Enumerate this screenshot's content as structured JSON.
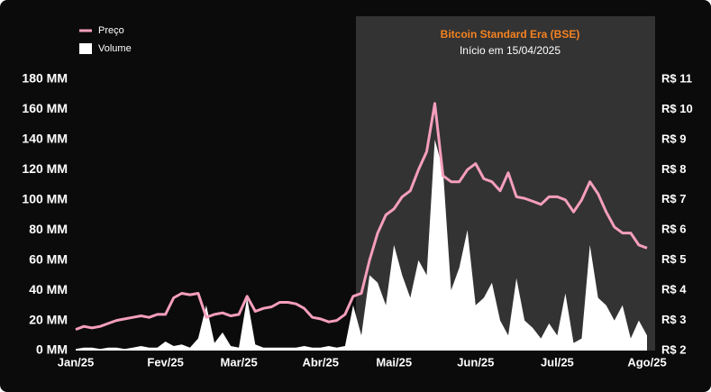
{
  "chart_data": {
    "type": "line",
    "title": "Bitcoin Standard Era (BSE)",
    "subtitle": "Início em 15/04/2025",
    "categories": [
      "Jan/25",
      null,
      null,
      null,
      null,
      null,
      null,
      null,
      null,
      null,
      null,
      "Fev/25",
      null,
      null,
      null,
      null,
      null,
      null,
      null,
      null,
      "Mar/25",
      null,
      null,
      null,
      null,
      null,
      null,
      null,
      null,
      null,
      "Abr/25",
      null,
      null,
      null,
      null,
      null,
      null,
      null,
      null,
      "Mai/25",
      null,
      null,
      null,
      null,
      null,
      null,
      null,
      null,
      null,
      "Jun/25",
      null,
      null,
      null,
      null,
      null,
      null,
      null,
      null,
      null,
      "Jul/25",
      null,
      null,
      null,
      null,
      null,
      null,
      null,
      null,
      null,
      null,
      "Ago/25"
    ],
    "series": [
      {
        "name": "Preço",
        "color": "#f59ebd",
        "axis": "y2",
        "values": [
          2.7,
          2.8,
          2.75,
          2.8,
          2.9,
          3.0,
          3.05,
          3.1,
          3.15,
          3.1,
          3.2,
          3.2,
          3.75,
          3.9,
          3.85,
          3.9,
          3.1,
          3.2,
          3.25,
          3.15,
          3.2,
          3.8,
          3.3,
          3.4,
          3.45,
          3.6,
          3.6,
          3.55,
          3.4,
          3.1,
          3.05,
          2.95,
          3.0,
          3.2,
          3.8,
          3.9,
          5.0,
          5.9,
          6.5,
          6.7,
          7.1,
          7.3,
          8.0,
          8.6,
          10.2,
          7.8,
          7.6,
          7.6,
          8.0,
          8.2,
          7.7,
          7.6,
          7.3,
          7.9,
          7.1,
          7.05,
          6.95,
          6.85,
          7.1,
          7.1,
          7.0,
          6.6,
          7.0,
          7.6,
          7.2,
          6.6,
          6.1,
          5.9,
          5.9,
          5.5,
          5.4
        ]
      },
      {
        "name": "Volume",
        "color": "#ffffff",
        "axis": "y",
        "values": [
          1,
          2,
          2,
          1,
          2,
          2,
          1,
          2,
          3,
          2,
          2,
          6,
          3,
          4,
          2,
          8,
          30,
          5,
          12,
          3,
          2,
          35,
          4,
          2,
          2,
          2,
          2,
          2,
          3,
          2,
          2,
          3,
          2,
          3,
          30,
          10,
          50,
          45,
          30,
          70,
          50,
          35,
          60,
          50,
          140,
          120,
          40,
          55,
          80,
          30,
          35,
          45,
          20,
          10,
          48,
          20,
          15,
          8,
          18,
          10,
          38,
          5,
          8,
          70,
          35,
          30,
          20,
          30,
          8,
          20,
          10
        ]
      }
    ],
    "ylim": [
      0,
      180
    ],
    "yticks": [
      {
        "value": 0,
        "label": "0 MM"
      },
      {
        "value": 20,
        "label": "20 MM"
      },
      {
        "value": 40,
        "label": "40 MM"
      },
      {
        "value": 60,
        "label": "60 MM"
      },
      {
        "value": 80,
        "label": "80 MM"
      },
      {
        "value": 100,
        "label": "100 MM"
      },
      {
        "value": 120,
        "label": "120 MM"
      },
      {
        "value": 140,
        "label": "140 MM"
      },
      {
        "value": 160,
        "label": "160 MM"
      },
      {
        "value": 180,
        "label": "180 MM"
      }
    ],
    "y2lim": [
      2,
      11
    ],
    "y2ticks": [
      {
        "value": 2,
        "label": "R$ 2"
      },
      {
        "value": 3,
        "label": "R$ 3"
      },
      {
        "value": 4,
        "label": "R$ 4"
      },
      {
        "value": 5,
        "label": "R$ 5"
      },
      {
        "value": 6,
        "label": "R$ 6"
      },
      {
        "value": 7,
        "label": "R$ 7"
      },
      {
        "value": 8,
        "label": "R$ 8"
      },
      {
        "value": 9,
        "label": "R$ 9"
      },
      {
        "value": 10,
        "label": "R$ 10"
      },
      {
        "value": 11,
        "label": "R$ 11"
      }
    ],
    "grid": false,
    "legend": "top-left",
    "annotation_color": "#f58220"
  }
}
